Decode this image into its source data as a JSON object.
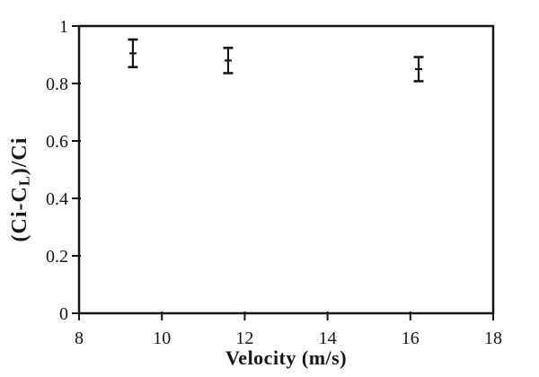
{
  "figure": {
    "background": "#ffffff",
    "ink_color": "#161616"
  },
  "chart_data": {
    "type": "scatter",
    "title": "",
    "xlabel": "Velocity (m/s)",
    "ylabel_text": "(Ci-CL)/Ci",
    "ylabel_parts": [
      {
        "text": "(Ci-C"
      },
      {
        "text": "L",
        "subscript": true
      },
      {
        "text": ")/Ci"
      }
    ],
    "xlim": [
      8,
      18
    ],
    "ylim": [
      0,
      1
    ],
    "xticks": [
      8,
      10,
      12,
      14,
      16,
      18
    ],
    "xtick_labels": [
      "8",
      "10",
      "12",
      "14",
      "16",
      "18"
    ],
    "yticks": [
      0,
      0.2,
      0.4,
      0.6,
      0.8,
      1
    ],
    "ytick_labels": [
      "0",
      "0.2",
      "0.4",
      "0.6",
      "0.8",
      "1"
    ],
    "grid": false,
    "legend": null,
    "marker": "horizontal-dash",
    "error_bars": "vertical-with-caps",
    "points": [
      {
        "x": 9.3,
        "y": 0.905,
        "yerr": 0.048
      },
      {
        "x": 11.6,
        "y": 0.88,
        "yerr": 0.044
      },
      {
        "x": 16.2,
        "y": 0.85,
        "yerr": 0.042
      }
    ]
  }
}
